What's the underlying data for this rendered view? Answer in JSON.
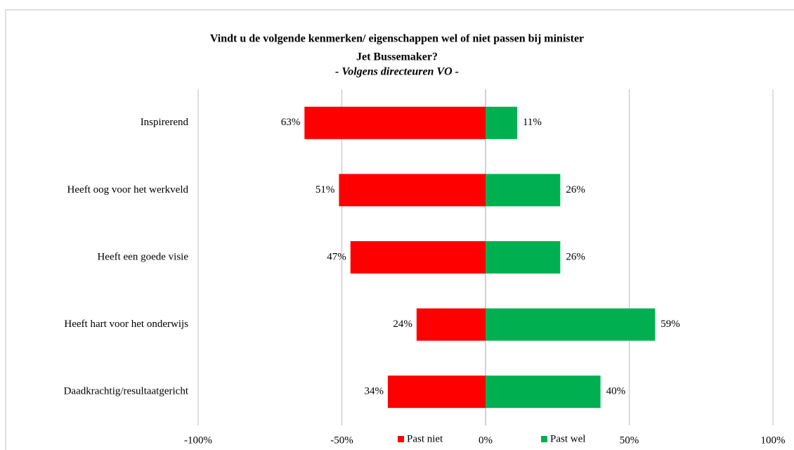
{
  "chart_data": {
    "type": "diverging-bar",
    "title": [
      "Vindt u de volgende kenmerken/ eigenschappen wel of niet passen bij minister",
      "Jet Bussemaker?"
    ],
    "subtitle": "- Volgens directeuren VO -",
    "categories": [
      "Inspirerend",
      "Heeft oog voor het werkveld",
      "Heeft een goede visie",
      "Heeft hart voor het onderwijs",
      "Daadkrachtig/resultaatgericht"
    ],
    "series": [
      {
        "name": "Past niet",
        "color": "#ff0000",
        "values": [
          -63,
          -51,
          -47,
          -24,
          -34
        ],
        "value_labels": [
          "63%",
          "51%",
          "47%",
          "24%",
          "34%"
        ]
      },
      {
        "name": "Past wel",
        "color": "#00b050",
        "values": [
          11,
          26,
          26,
          59,
          40
        ],
        "value_labels": [
          "11%",
          "26%",
          "26%",
          "59%",
          "40%"
        ]
      }
    ],
    "xlim": [
      -100,
      100
    ],
    "xticks": [
      {
        "value": -100,
        "label": "-100%"
      },
      {
        "value": -50,
        "label": "-50%"
      },
      {
        "value": 0,
        "label": "0%"
      },
      {
        "value": 50,
        "label": "50%"
      },
      {
        "value": 100,
        "label": "100%"
      }
    ],
    "grid": true,
    "legend": "bottom"
  }
}
